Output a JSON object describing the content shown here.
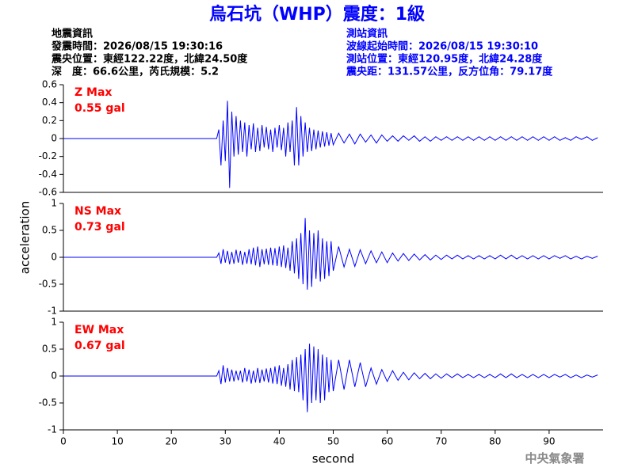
{
  "header": {
    "title": "烏石坑（WHP）震度：1級",
    "left_info": [
      "地震資訊",
      "發震時間：2026/08/15 19:30:16",
      "震央位置：東經122.22度，北緯24.50度",
      "深　度：66.6公里，芮氏規模：5.2"
    ],
    "right_info": [
      "測站資訊",
      "波線起始時間：2026/08/15 19:30:10",
      "測站位置：東經120.95度，北緯24.28度",
      "震央距：131.57公里，反方位角：79.17度"
    ]
  },
  "footer": "中央氣象署",
  "chart_data": [
    {
      "type": "line",
      "annotations": [
        "Z Max",
        "0.55 gal"
      ],
      "x": [
        0,
        28.4,
        28.8,
        29.2,
        29.6,
        30,
        30.4,
        30.8,
        31.2,
        31.6,
        32,
        32.4,
        32.8,
        33.2,
        33.6,
        34,
        34.4,
        34.8,
        35.2,
        35.6,
        36,
        36.4,
        36.8,
        37.2,
        37.6,
        38,
        38.4,
        38.8,
        39.2,
        39.6,
        40,
        40.4,
        40.8,
        41.2,
        41.6,
        42,
        42.4,
        42.8,
        43.2,
        43.6,
        44,
        44.4,
        44.8,
        45.2,
        45.6,
        46,
        46.4,
        46.8,
        47.2,
        47.6,
        48,
        48.4,
        48.8,
        49.2,
        49.6,
        50,
        51,
        52,
        53,
        54,
        55,
        56,
        57,
        58,
        59,
        60,
        61,
        62,
        63,
        64,
        65,
        66,
        67,
        68,
        69,
        70,
        71,
        72,
        73,
        74,
        75,
        76,
        77,
        78,
        79,
        80,
        81,
        82,
        83,
        84,
        85,
        86,
        87,
        88,
        89,
        90,
        91,
        92,
        93,
        94,
        95,
        96,
        97,
        98,
        99
      ],
      "series": [
        {
          "color": "#0000ff",
          "values": [
            0,
            0,
            0.1,
            -0.3,
            0.2,
            -0.25,
            0.42,
            -0.55,
            0.3,
            -0.2,
            0.25,
            -0.18,
            0.2,
            -0.15,
            0.18,
            -0.2,
            0.15,
            -0.12,
            0.17,
            -0.15,
            0.12,
            -0.14,
            0.15,
            -0.1,
            0.13,
            -0.12,
            0.1,
            -0.15,
            0.12,
            -0.1,
            0.15,
            -0.13,
            0.12,
            -0.2,
            0.18,
            -0.15,
            0.2,
            -0.3,
            0.35,
            -0.3,
            0.25,
            -0.2,
            0.18,
            -0.15,
            0.12,
            -0.14,
            0.1,
            -0.12,
            0.09,
            -0.1,
            0.08,
            -0.09,
            0.07,
            -0.08,
            0.06,
            -0.07,
            0.06,
            -0.05,
            0.05,
            -0.06,
            0.05,
            -0.04,
            0.04,
            -0.05,
            0.04,
            -0.03,
            0.03,
            -0.03,
            0.03,
            -0.02,
            0.03,
            -0.03,
            0.02,
            -0.03,
            0.02,
            -0.02,
            0.02,
            -0.02,
            0.02,
            -0.02,
            0.02,
            -0.02,
            0.02,
            -0.02,
            0.02,
            -0.02,
            0.02,
            -0.02,
            0.02,
            -0.02,
            0.02,
            -0.02,
            0.02,
            -0.02,
            0.02,
            -0.02,
            0.02,
            -0.02,
            0.01,
            -0.02,
            0.02,
            -0.01,
            0.02,
            -0.02,
            0.01
          ]
        }
      ],
      "xlim": [
        0,
        100
      ],
      "ylim": [
        -0.6,
        0.6
      ],
      "yticks": [
        -0.6,
        -0.4,
        -0.2,
        0,
        0.2,
        0.4,
        0.6
      ]
    },
    {
      "type": "line",
      "annotations": [
        "NS Max",
        "0.73 gal"
      ],
      "ylabel": "acceleration",
      "x": [
        0,
        28.4,
        28.8,
        29.2,
        29.6,
        30,
        30.4,
        30.8,
        31.2,
        31.6,
        32,
        32.4,
        32.8,
        33.2,
        33.6,
        34,
        34.4,
        34.8,
        35.2,
        35.6,
        36,
        36.4,
        36.8,
        37.2,
        37.6,
        38,
        38.4,
        38.8,
        39.2,
        39.6,
        40,
        40.4,
        40.8,
        41.2,
        41.6,
        42,
        42.4,
        42.8,
        43.2,
        43.6,
        44,
        44.4,
        44.8,
        45.2,
        45.6,
        46,
        46.4,
        46.8,
        47.2,
        47.6,
        48,
        48.4,
        48.8,
        49.2,
        49.6,
        50,
        51,
        52,
        53,
        54,
        55,
        56,
        57,
        58,
        59,
        60,
        61,
        62,
        63,
        64,
        65,
        66,
        67,
        68,
        69,
        70,
        71,
        72,
        73,
        74,
        75,
        76,
        77,
        78,
        79,
        80,
        81,
        82,
        83,
        84,
        85,
        86,
        87,
        88,
        89,
        90,
        91,
        92,
        93,
        94,
        95,
        96,
        97,
        98,
        99
      ],
      "series": [
        {
          "color": "#0000ff",
          "values": [
            0,
            0,
            0.08,
            -0.12,
            0.15,
            -0.1,
            0.12,
            -0.13,
            0.1,
            -0.12,
            0.14,
            -0.1,
            0.12,
            -0.14,
            0.1,
            -0.12,
            0.15,
            -0.13,
            0.18,
            -0.15,
            0.2,
            -0.18,
            0.15,
            -0.13,
            0.16,
            -0.14,
            0.18,
            -0.15,
            0.17,
            -0.16,
            0.2,
            -0.18,
            0.22,
            -0.2,
            0.18,
            -0.25,
            0.3,
            -0.3,
            0.35,
            -0.4,
            0.45,
            -0.5,
            0.73,
            -0.6,
            0.5,
            -0.55,
            0.45,
            -0.4,
            0.5,
            -0.45,
            0.35,
            -0.4,
            0.3,
            -0.35,
            0.3,
            -0.25,
            0.2,
            -0.18,
            0.15,
            -0.17,
            0.14,
            -0.12,
            0.12,
            -0.1,
            0.1,
            -0.1,
            0.08,
            -0.07,
            0.07,
            -0.06,
            0.06,
            -0.05,
            0.05,
            -0.05,
            0.04,
            -0.04,
            0.04,
            -0.03,
            0.04,
            -0.03,
            0.03,
            -0.03,
            0.03,
            -0.03,
            0.03,
            -0.03,
            0.04,
            -0.03,
            0.04,
            -0.03,
            0.03,
            -0.03,
            0.03,
            -0.03,
            0.03,
            -0.03,
            0.03,
            -0.02,
            0.03,
            -0.03,
            0.02,
            -0.03,
            0.02,
            -0.02,
            0.02
          ]
        }
      ],
      "xlim": [
        0,
        100
      ],
      "ylim": [
        -1,
        1
      ],
      "yticks": [
        -1,
        -0.5,
        0,
        0.5,
        1
      ]
    },
    {
      "type": "line",
      "annotations": [
        "EW Max",
        "0.67 gal"
      ],
      "xlabel": "second",
      "x": [
        0,
        28.4,
        28.8,
        29.2,
        29.6,
        30,
        30.4,
        30.8,
        31.2,
        31.6,
        32,
        32.4,
        32.8,
        33.2,
        33.6,
        34,
        34.4,
        34.8,
        35.2,
        35.6,
        36,
        36.4,
        36.8,
        37.2,
        37.6,
        38,
        38.4,
        38.8,
        39.2,
        39.6,
        40,
        40.4,
        40.8,
        41.2,
        41.6,
        42,
        42.4,
        42.8,
        43.2,
        43.6,
        44,
        44.4,
        44.8,
        45.2,
        45.6,
        46,
        46.4,
        46.8,
        47.2,
        47.6,
        48,
        48.4,
        48.8,
        49.2,
        49.6,
        50,
        51,
        52,
        53,
        54,
        55,
        56,
        57,
        58,
        59,
        60,
        61,
        62,
        63,
        64,
        65,
        66,
        67,
        68,
        69,
        70,
        71,
        72,
        73,
        74,
        75,
        76,
        77,
        78,
        79,
        80,
        81,
        82,
        83,
        84,
        85,
        86,
        87,
        88,
        89,
        90,
        91,
        92,
        93,
        94,
        95,
        96,
        97,
        98,
        99
      ],
      "series": [
        {
          "color": "#0000ff",
          "values": [
            0,
            0,
            0.1,
            -0.15,
            0.2,
            -0.12,
            0.15,
            -0.1,
            0.12,
            -0.1,
            0.1,
            -0.08,
            0.1,
            -0.12,
            0.15,
            -0.1,
            0.12,
            -0.14,
            0.1,
            -0.12,
            0.15,
            -0.13,
            0.12,
            -0.1,
            0.14,
            -0.12,
            0.15,
            -0.14,
            0.18,
            -0.15,
            0.2,
            -0.18,
            0.15,
            -0.2,
            0.22,
            -0.25,
            0.3,
            -0.28,
            0.35,
            -0.3,
            0.4,
            -0.45,
            0.5,
            -0.67,
            0.6,
            -0.5,
            0.55,
            -0.45,
            0.5,
            -0.5,
            0.4,
            -0.45,
            0.35,
            -0.3,
            0.3,
            -0.28,
            0.3,
            -0.25,
            0.3,
            -0.2,
            0.25,
            -0.2,
            0.15,
            -0.15,
            0.12,
            -0.1,
            0.1,
            -0.08,
            0.07,
            -0.07,
            0.06,
            -0.05,
            0.05,
            -0.05,
            0.04,
            -0.04,
            0.04,
            -0.03,
            0.04,
            -0.03,
            0.03,
            -0.03,
            0.03,
            -0.03,
            0.03,
            -0.03,
            0.04,
            -0.03,
            0.04,
            -0.03,
            0.03,
            -0.03,
            0.03,
            -0.03,
            0.03,
            -0.03,
            0.03,
            -0.02,
            0.03,
            -0.03,
            0.02,
            -0.03,
            0.02,
            -0.02,
            0.02
          ]
        }
      ],
      "xlim": [
        0,
        100
      ],
      "ylim": [
        -1,
        1
      ],
      "yticks": [
        -1,
        -0.5,
        0,
        0.5,
        1
      ],
      "xticks": [
        0,
        10,
        20,
        30,
        40,
        50,
        60,
        70,
        80,
        90
      ]
    }
  ]
}
